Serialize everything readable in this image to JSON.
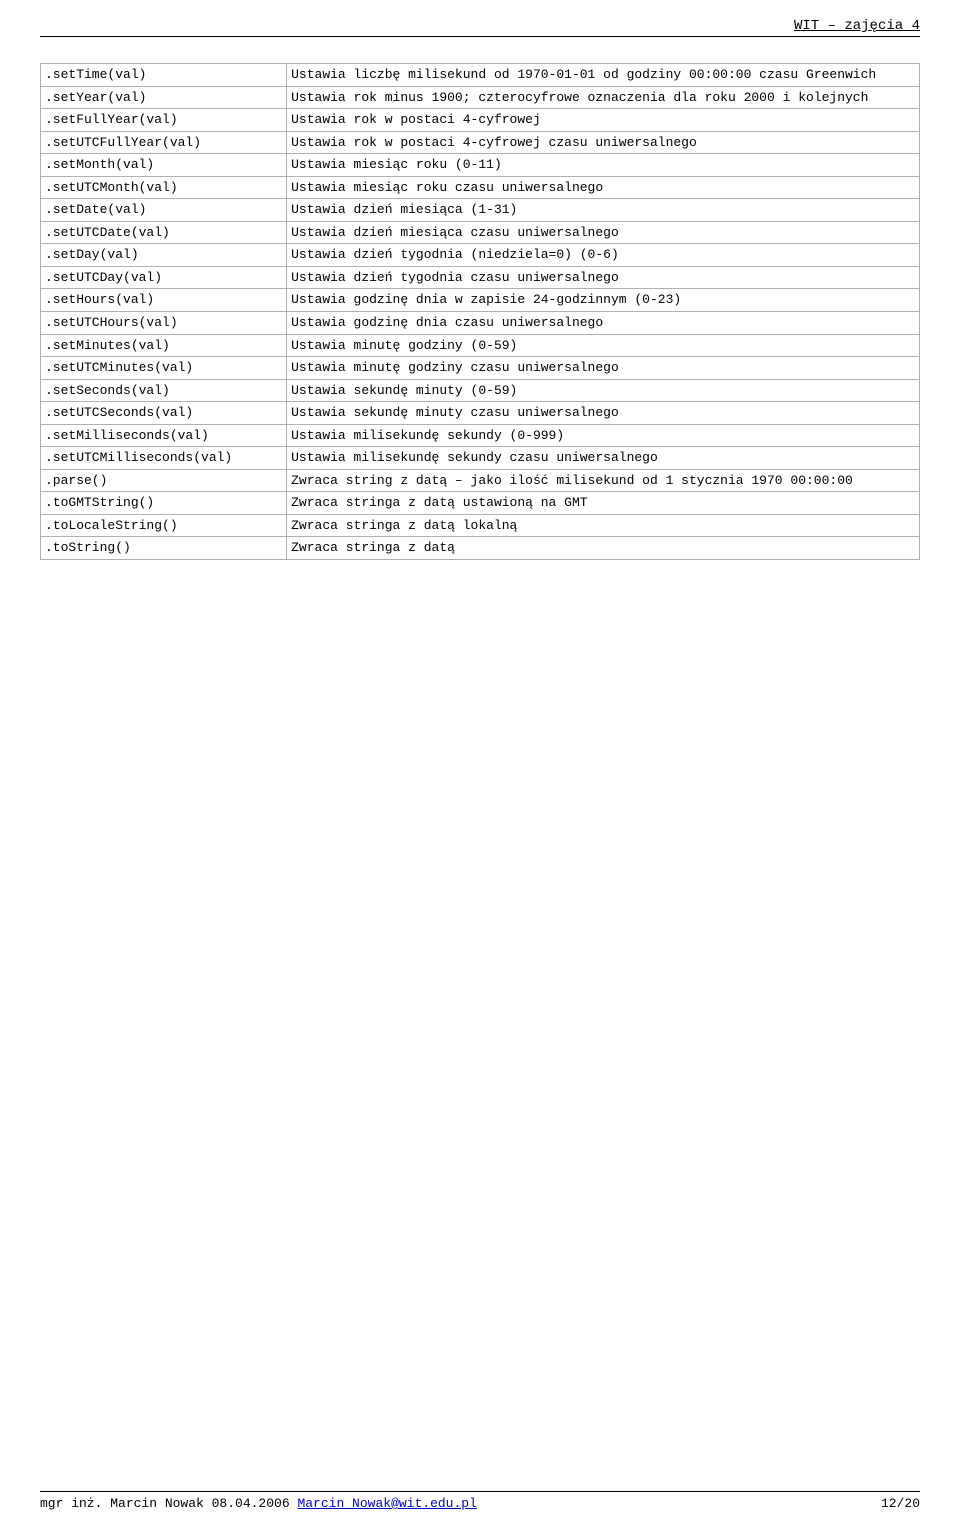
{
  "header": {
    "title": "WIT – zajęcia 4"
  },
  "table": {
    "rows": [
      {
        "method": ".setTime(val)",
        "desc": "Ustawia liczbę milisekund od 1970-01-01 od godziny 00:00:00 czasu Greenwich"
      },
      {
        "method": ".setYear(val)",
        "desc": "Ustawia rok minus 1900; czterocyfrowe oznaczenia dla roku 2000 i kolejnych"
      },
      {
        "method": ".setFullYear(val)",
        "desc": "Ustawia rok w postaci 4-cyfrowej"
      },
      {
        "method": ".setUTCFullYear(val)",
        "desc": "Ustawia rok w postaci 4-cyfrowej czasu uniwersalnego"
      },
      {
        "method": ".setMonth(val)",
        "desc": "Ustawia miesiąc roku (0-11)"
      },
      {
        "method": ".setUTCMonth(val)",
        "desc": "Ustawia miesiąc roku czasu uniwersalnego"
      },
      {
        "method": ".setDate(val)",
        "desc": "Ustawia dzień miesiąca (1-31)"
      },
      {
        "method": ".setUTCDate(val)",
        "desc": "Ustawia dzień miesiąca czasu uniwersalnego"
      },
      {
        "method": ".setDay(val)",
        "desc": "Ustawia dzień tygodnia (niedziela=0) (0-6)"
      },
      {
        "method": ".setUTCDay(val)",
        "desc": "Ustawia dzień tygodnia czasu uniwersalnego"
      },
      {
        "method": ".setHours(val)",
        "desc": "Ustawia godzinę dnia w zapisie 24-godzinnym (0-23)"
      },
      {
        "method": ".setUTCHours(val)",
        "desc": "Ustawia godzinę dnia czasu uniwersalnego"
      },
      {
        "method": ".setMinutes(val)",
        "desc": "Ustawia minutę godziny (0-59)"
      },
      {
        "method": ".setUTCMinutes(val)",
        "desc": "Ustawia minutę godziny czasu uniwersalnego"
      },
      {
        "method": ".setSeconds(val)",
        "desc": "Ustawia sekundę minuty (0-59)"
      },
      {
        "method": ".setUTCSeconds(val)",
        "desc": "Ustawia sekundę minuty czasu uniwersalnego"
      },
      {
        "method": ".setMilliseconds(val)",
        "desc": "Ustawia milisekundę sekundy (0-999)"
      },
      {
        "method": ".setUTCMilliseconds(val)",
        "desc": "Ustawia milisekundę sekundy czasu uniwersalnego"
      },
      {
        "method": ".parse()",
        "desc": "Zwraca string z datą – jako ilość milisekund od 1 stycznia 1970 00:00:00"
      },
      {
        "method": ".toGMTString()",
        "desc": "Zwraca stringa z datą ustawioną na GMT"
      },
      {
        "method": ".toLocaleString()",
        "desc": "Zwraca stringa z datą lokalną"
      },
      {
        "method": ".toString()",
        "desc": "Zwraca stringa z datą"
      }
    ]
  },
  "footer": {
    "author_prefix": "mgr inż. Marcin Nowak 08.04.2006 ",
    "email": "Marcin_Nowak@wit.edu.pl",
    "page": "12/20"
  },
  "style": {
    "border_color": "#b0b0b0",
    "background_color": "#ffffff",
    "link_color": "#0000cc",
    "font_family": "Courier New",
    "font_size_pt": 10
  }
}
